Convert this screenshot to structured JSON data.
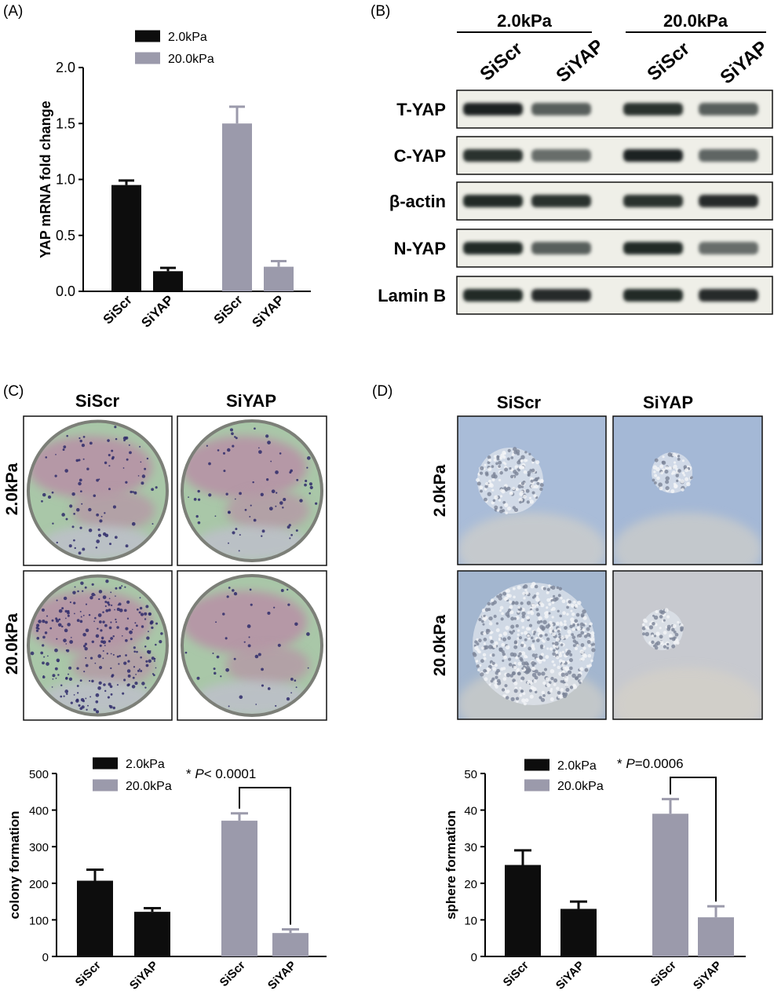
{
  "panels": {
    "A": {
      "label": "(A)"
    },
    "B": {
      "label": "(B)",
      "groups": [
        "2.0kPa",
        "20.0kPa"
      ],
      "lanes": [
        "SiScr",
        "SiYAP",
        "SiScr",
        "SiYAP"
      ],
      "rows": [
        "T-YAP",
        "C-YAP",
        "β-actin",
        "N-YAP",
        "Lamin B"
      ],
      "intensity": [
        [
          0.95,
          0.55,
          0.85,
          0.55
        ],
        [
          0.85,
          0.45,
          0.95,
          0.5
        ],
        [
          0.9,
          0.85,
          0.85,
          0.88
        ],
        [
          0.9,
          0.55,
          0.9,
          0.45
        ],
        [
          0.9,
          0.88,
          0.9,
          0.88
        ]
      ]
    },
    "C": {
      "label": "(C)",
      "col_labels": [
        "SiScr",
        "SiYAP"
      ],
      "row_labels": [
        "2.0kPa",
        "20.0kPa"
      ]
    },
    "D": {
      "label": "(D)",
      "col_labels": [
        "SiScr",
        "SiYAP"
      ],
      "row_labels": [
        "2.0kPa",
        "20.0kPa"
      ]
    }
  },
  "colors": {
    "series_1": "#0d0d0d",
    "series_2": "#9b9aab",
    "well_pink": "#b598a6",
    "well_green": "#a9c7a8",
    "sphere_bg": "#a7b9d6"
  },
  "chart_data": [
    {
      "type": "bar",
      "panel": "A",
      "categories": [
        "SiScr",
        "SiYAP",
        "SiScr",
        "SiYAP"
      ],
      "series": [
        {
          "name": "2.0kPa",
          "values": [
            0.95,
            0.18,
            null,
            null
          ],
          "errors": [
            0.04,
            0.03,
            null,
            null
          ]
        },
        {
          "name": "20.0kPa",
          "values": [
            null,
            null,
            1.5,
            0.22
          ],
          "errors": [
            null,
            null,
            0.15,
            0.05
          ]
        }
      ],
      "ylabel": "YAP mRNA fold change",
      "xlabel": "",
      "ylim": [
        0,
        2.0
      ],
      "yticks": [
        "0.0",
        "0.5",
        "1.0",
        "1.5",
        "2.0"
      ],
      "legend": "top",
      "grid": false,
      "annotation": null
    },
    {
      "type": "bar",
      "panel": "C",
      "categories": [
        "SiScr",
        "SiYAP",
        "SiScr",
        "SiYAP"
      ],
      "series": [
        {
          "name": "2.0kPa",
          "values": [
            207,
            122,
            null,
            null
          ],
          "errors": [
            30,
            10,
            null,
            null
          ]
        },
        {
          "name": "20.0kPa",
          "values": [
            null,
            null,
            371,
            64
          ],
          "errors": [
            null,
            null,
            20,
            10
          ]
        }
      ],
      "ylabel": "colony formation",
      "xlabel": "",
      "ylim": [
        0,
        500
      ],
      "yticks": [
        "0",
        "100",
        "200",
        "300",
        "400",
        "500"
      ],
      "legend": "top",
      "grid": false,
      "annotation": {
        "star": "* ",
        "p": "P",
        "rest": "< 0.0001"
      }
    },
    {
      "type": "bar",
      "panel": "D",
      "categories": [
        "SiScr",
        "SiYAP",
        "SiScr",
        "SiYAP"
      ],
      "series": [
        {
          "name": "2.0kPa",
          "values": [
            25,
            13,
            null,
            null
          ],
          "errors": [
            4,
            2,
            null,
            null
          ]
        },
        {
          "name": "20.0kPa",
          "values": [
            null,
            null,
            39,
            10.7
          ],
          "errors": [
            null,
            null,
            4,
            3
          ]
        }
      ],
      "ylabel": "sphere formation",
      "xlabel": "",
      "ylim": [
        0,
        50
      ],
      "yticks": [
        "0",
        "10",
        "20",
        "30",
        "40",
        "50"
      ],
      "legend": "top",
      "grid": false,
      "annotation": {
        "star": "* ",
        "p": "P",
        "rest": "=0.0006"
      }
    }
  ]
}
